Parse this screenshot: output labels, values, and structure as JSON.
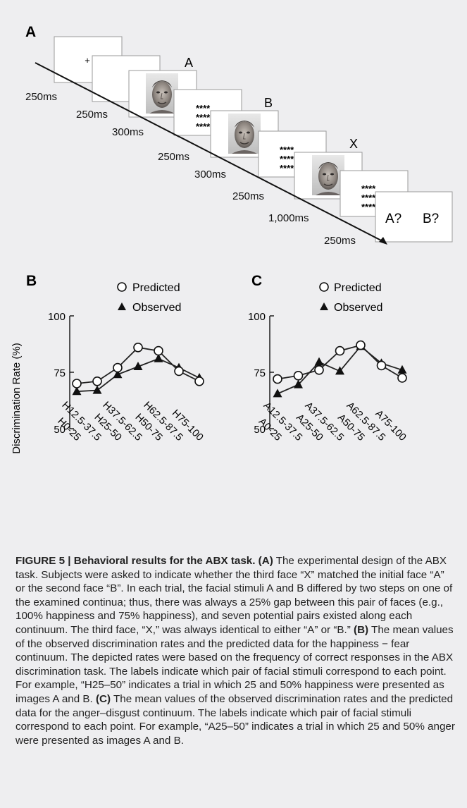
{
  "panel_a": {
    "letter": "A",
    "face_labels": [
      "A",
      "B",
      "X"
    ],
    "mask": "****",
    "fixation": "+",
    "response": {
      "left": "A?",
      "right": "B?"
    },
    "durations": [
      "250ms",
      "250ms",
      "300ms",
      "250ms",
      "300ms",
      "250ms",
      "1,000ms",
      "250ms"
    ]
  },
  "chart_data": [
    {
      "type": "line",
      "panel": "B",
      "ylabel": "Discrimination Rate (%)",
      "ylim": [
        50,
        100
      ],
      "yticks": [
        50,
        75,
        100
      ],
      "categories": [
        "H0-25",
        "H12.5-37.5",
        "H25-50",
        "H37.5-62.5",
        "H50-75",
        "H62.5-87.5",
        "H75-100"
      ],
      "series": [
        {
          "name": "Predicted",
          "marker": "open-circle",
          "values": [
            70,
            71,
            77,
            86,
            84.5,
            75.5,
            71
          ]
        },
        {
          "name": "Observed",
          "marker": "filled-triangle",
          "values": [
            66.5,
            67,
            74,
            77.5,
            81,
            77,
            72.5
          ]
        }
      ],
      "legend": "top"
    },
    {
      "type": "line",
      "panel": "C",
      "ylabel": "",
      "ylim": [
        50,
        100
      ],
      "yticks": [
        50,
        75,
        100
      ],
      "categories": [
        "A0-25",
        "A12.5-37.5",
        "A25-50",
        "A37.5-62.5",
        "A50-75",
        "A62.5-87.5",
        "A75-100"
      ],
      "series": [
        {
          "name": "Predicted",
          "marker": "open-circle",
          "values": [
            72,
            73.5,
            76,
            84.5,
            87,
            78,
            72.5
          ]
        },
        {
          "name": "Observed",
          "marker": "filled-triangle",
          "values": [
            65.5,
            69.5,
            79.5,
            75.5,
            86.5,
            79,
            76
          ]
        }
      ],
      "legend": "top"
    }
  ],
  "caption": {
    "title": "FIGURE 5 | Behavioral results for the ABX task.",
    "a_label": "(A)",
    "a_text": " The experimental design of the ABX task. Subjects were asked to indicate whether the third face “X” matched the initial face “A” or the second face “B”. In each trial, the facial stimuli A and B differed by two steps on one of the examined continua; thus, there was always a 25% gap between this pair of faces (e.g., 100% happiness and 75% happiness), and seven potential pairs existed along each continuum. The third face, “X,” was always identical to either “A” or “B.” ",
    "b_label": "(B)",
    "b_text": " The mean values of the observed discrimination rates and the predicted data for the happiness − fear continuum. The depicted rates were based on the frequency of correct responses in the ABX discrimination task. The labels indicate which pair of facial stimuli correspond to each point. For example, “H25–50” indicates a trial in which 25 and 50% happiness were presented as images A and B. ",
    "c_label": "(C)",
    "c_text": " The mean values of the observed discrimination rates and the predicted data for the anger–disgust continuum. The labels indicate which pair of facial stimuli correspond to each point. For example, “A25–50” indicates a trial in which 25 and 50% anger were presented as images A and B."
  }
}
